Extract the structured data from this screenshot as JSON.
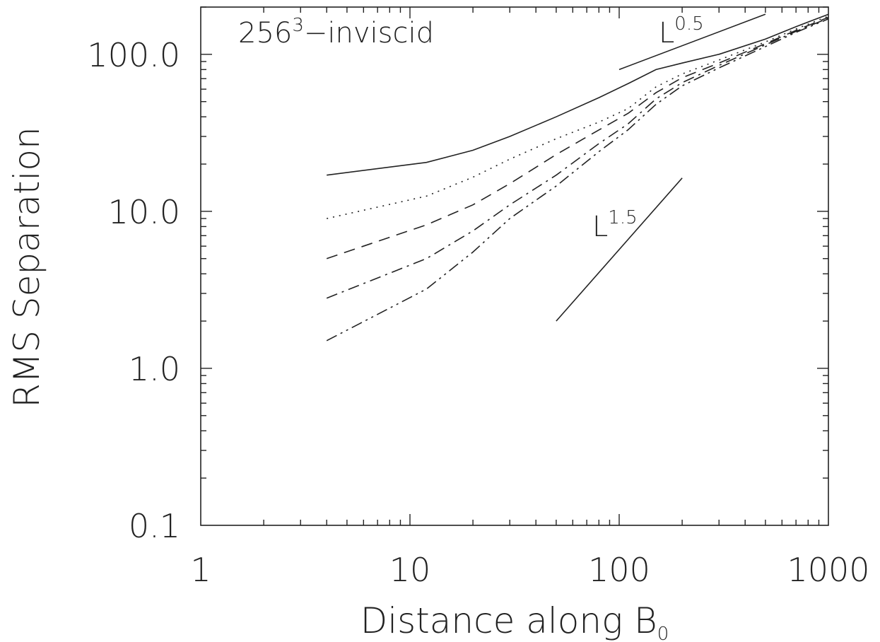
{
  "chart_data": {
    "type": "line",
    "title": "",
    "xlabel": "Distance along B",
    "xlabel_subscript": "0",
    "ylabel": "RMS Separation",
    "xscale": "log",
    "yscale": "log",
    "xlim": [
      1,
      1000
    ],
    "ylim": [
      0.1,
      200
    ],
    "x_ticks": [
      {
        "value": 1,
        "label": "1"
      },
      {
        "value": 10,
        "label": "10"
      },
      {
        "value": 100,
        "label": "100"
      },
      {
        "value": 1000,
        "label": "1000"
      }
    ],
    "y_ticks": [
      {
        "value": 0.1,
        "label": "0.1"
      },
      {
        "value": 1,
        "label": "1.0"
      },
      {
        "value": 10,
        "label": "10.0"
      },
      {
        "value": 100,
        "label": "100.0"
      }
    ],
    "annotation": {
      "base": "256",
      "sup": "3",
      "rest": "−inviscid"
    },
    "series": [
      {
        "style": "solid",
        "x": [
          4,
          12,
          20,
          30,
          50,
          80,
          110,
          150,
          200,
          300,
          500,
          700,
          1000
        ],
        "y": [
          17,
          20.5,
          24.5,
          30,
          40,
          53,
          65,
          80,
          88,
          100,
          125,
          150,
          180
        ]
      },
      {
        "style": "dotted",
        "x": [
          4,
          12,
          20,
          30,
          50,
          80,
          110,
          150,
          200,
          300,
          500,
          700,
          1000
        ],
        "y": [
          9,
          12.5,
          16.5,
          21.5,
          29,
          37,
          45,
          62,
          75,
          92,
          120,
          145,
          175
        ]
      },
      {
        "style": "dashed",
        "x": [
          4,
          12,
          20,
          30,
          50,
          80,
          110,
          150,
          200,
          300,
          500,
          700,
          1000
        ],
        "y": [
          5,
          8.2,
          11,
          15,
          23,
          33,
          42,
          57,
          71,
          88,
          117,
          142,
          172
        ]
      },
      {
        "style": "dashdot",
        "x": [
          4,
          12,
          20,
          30,
          50,
          80,
          110,
          150,
          200,
          300,
          500,
          700,
          1000
        ],
        "y": [
          2.8,
          5,
          7.5,
          11,
          17,
          27,
          36,
          52,
          66,
          85,
          115,
          140,
          170
        ]
      },
      {
        "style": "dashdotdot",
        "x": [
          4,
          12,
          20,
          30,
          50,
          80,
          110,
          150,
          200,
          300,
          500,
          700,
          1000
        ],
        "y": [
          1.5,
          3.2,
          5.5,
          9,
          14.5,
          24,
          33,
          48,
          63,
          82,
          112,
          138,
          168
        ]
      }
    ],
    "reference_lines": [
      {
        "label_base": "L",
        "label_sup": "0.5",
        "x": [
          100,
          500
        ],
        "y": [
          80,
          180
        ]
      },
      {
        "label_base": "L",
        "label_sup": "1.5",
        "x": [
          50,
          200
        ],
        "y": [
          2,
          16.3
        ]
      }
    ],
    "grid": false,
    "legend": "none"
  }
}
